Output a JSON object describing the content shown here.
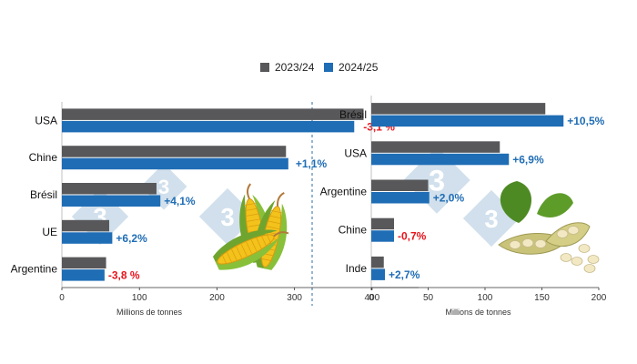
{
  "legend": {
    "labels": [
      "2023/24",
      "2024/25"
    ]
  },
  "colors": {
    "series_2023": "#58585a",
    "series_2024": "#1f6db5",
    "label_negative": "#e8141b",
    "label_positive": "#1f6db5",
    "watermark": "#c9dbe9",
    "divider": "#2e6ea6"
  },
  "icons": {
    "left": "corn-cobs-icon",
    "right": "soybean-pods-icon",
    "watermark": "logo-3tres3-watermark"
  },
  "chart_data": [
    {
      "type": "bar",
      "orientation": "horizontal",
      "categories": [
        "USA",
        "Chine",
        "Brésil",
        "UE",
        "Argentine"
      ],
      "series": [
        {
          "name": "2023/24",
          "values": [
            389,
            289,
            122,
            61,
            57
          ]
        },
        {
          "name": "2024/25",
          "values": [
            377,
            292,
            127,
            65,
            55
          ]
        }
      ],
      "labels": [
        "-3,1 %",
        "+1,1%",
        "+4,1%",
        "+6,2%",
        "-3,8 %"
      ],
      "xlabel": "Millions de tonnes",
      "xlim": [
        0,
        460
      ],
      "xticks": [
        0,
        100,
        200,
        300,
        400
      ],
      "grid": false
    },
    {
      "type": "bar",
      "orientation": "horizontal",
      "categories": [
        "Brésil",
        "USA",
        "Argentine",
        "Chine",
        "Inde"
      ],
      "series": [
        {
          "name": "2023/24",
          "values": [
            153,
            113,
            50,
            20,
            11
          ]
        },
        {
          "name": "2024/25",
          "values": [
            169,
            121,
            51,
            20,
            12
          ]
        }
      ],
      "labels": [
        "+10,5%",
        "+6,9%",
        "+2,0%",
        "-0,7%",
        "+2,7%"
      ],
      "xlabel": "Millions de tonnes",
      "xlim": [
        0,
        200
      ],
      "xticks": [
        0,
        50,
        100,
        150,
        200
      ],
      "grid": false
    }
  ]
}
